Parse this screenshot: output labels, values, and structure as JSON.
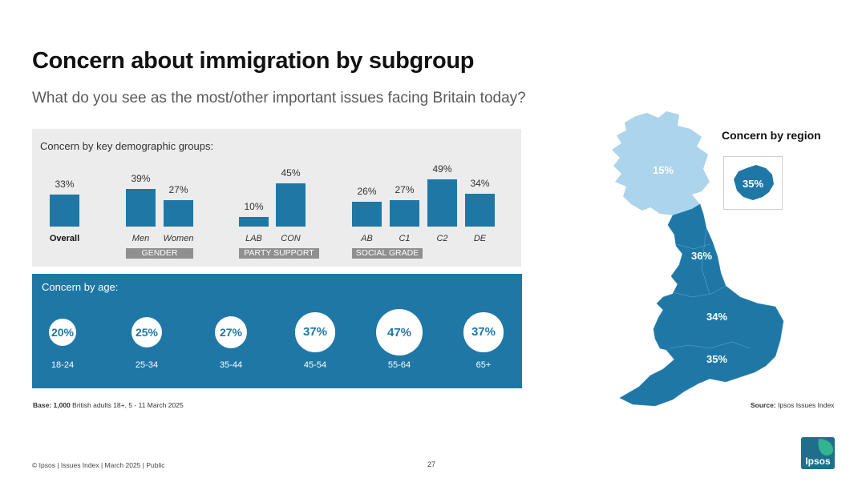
{
  "title": "Concern about immigration by subgroup",
  "subtitle": "What do you see as the most/other important issues facing Britain today?",
  "colors": {
    "bar": "#1f77a6",
    "scotland": "#acd4ec",
    "england_wales": "#1f77a6",
    "panel_grey": "#ececec",
    "tag_grey": "#8f8f8f"
  },
  "demographics": {
    "heading": "Concern by key demographic groups:",
    "groups": [
      {
        "label": "",
        "items": [
          {
            "name": "Overall",
            "value": "33%"
          }
        ]
      },
      {
        "label": "GENDER",
        "items": [
          {
            "name": "Men",
            "value": "39%"
          },
          {
            "name": "Women",
            "value": "27%"
          }
        ]
      },
      {
        "label": "PARTY SUPPORT",
        "items": [
          {
            "name": "LAB",
            "value": "10%"
          },
          {
            "name": "CON",
            "value": "45%"
          }
        ]
      },
      {
        "label": "SOCIAL GRADE",
        "items": [
          {
            "name": "AB",
            "value": "26%"
          },
          {
            "name": "C1",
            "value": "27%"
          },
          {
            "name": "C2",
            "value": "49%"
          },
          {
            "name": "DE",
            "value": "34%"
          }
        ]
      }
    ]
  },
  "age": {
    "heading": "Concern by age:",
    "items": [
      {
        "label": "18-24",
        "value": "20%"
      },
      {
        "label": "25-34",
        "value": "25%"
      },
      {
        "label": "35-44",
        "value": "27%"
      },
      {
        "label": "45-54",
        "value": "37%"
      },
      {
        "label": "55-64",
        "value": "47%"
      },
      {
        "label": "65+",
        "value": "37%"
      }
    ]
  },
  "region": {
    "heading": "Concern by region",
    "scotland": "15%",
    "north": "36%",
    "midlands": "34%",
    "south": "35%",
    "london": "35%"
  },
  "chart_data": [
    {
      "type": "bar",
      "title": "Concern by key demographic groups:",
      "categories": [
        "Overall",
        "Men",
        "Women",
        "LAB",
        "CON",
        "AB",
        "C1",
        "C2",
        "DE"
      ],
      "values": [
        33,
        39,
        27,
        10,
        45,
        26,
        27,
        49,
        34
      ],
      "groups": [
        "",
        "GENDER",
        "GENDER",
        "PARTY SUPPORT",
        "PARTY SUPPORT",
        "SOCIAL GRADE",
        "SOCIAL GRADE",
        "SOCIAL GRADE",
        "SOCIAL GRADE"
      ],
      "ylim": [
        0,
        50
      ]
    },
    {
      "type": "bubble",
      "title": "Concern by age:",
      "categories": [
        "18-24",
        "25-34",
        "35-44",
        "45-54",
        "55-64",
        "65+"
      ],
      "values": [
        20,
        25,
        27,
        37,
        47,
        37
      ]
    },
    {
      "type": "map",
      "title": "Concern by region",
      "regions": [
        "Scotland",
        "North",
        "Midlands",
        "South",
        "London"
      ],
      "values": [
        15,
        36,
        34,
        35,
        35
      ]
    }
  ],
  "base": {
    "bold": "Base: 1,000",
    "text": " British adults 18+, 5 - 11 March 2025"
  },
  "source": {
    "bold": "Source:",
    "text": " Ipsos Issues Index"
  },
  "footer": "© Ipsos | Issues Index | March 2025 | Public",
  "page_number": "27",
  "logo_text": "Ipsos"
}
